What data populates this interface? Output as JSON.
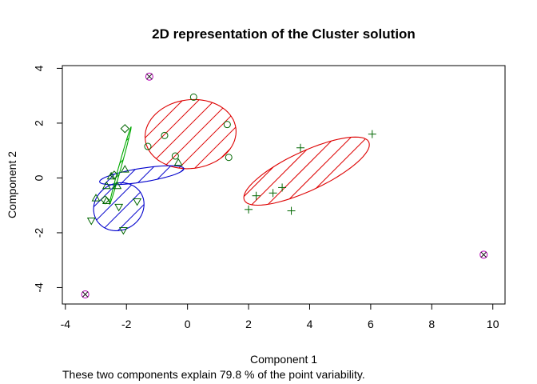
{
  "chart_data": {
    "type": "scatter",
    "title": "2D representation of the Cluster solution",
    "xlabel": "Component 1",
    "ylabel": "Component 2",
    "note": "These two components explain 79.8 % of the point variability.",
    "xlim": [
      -4.1,
      10.4
    ],
    "ylim": [
      -4.6,
      4.1
    ],
    "xticks": [
      -4,
      -2,
      0,
      2,
      4,
      6,
      8,
      10
    ],
    "yticks": [
      -4,
      -2,
      0,
      2,
      4
    ],
    "grid": false,
    "legend": "none",
    "ellipses": [
      {
        "cx": 0.1,
        "cy": 1.6,
        "rx": 1.5,
        "ry": 1.25,
        "angle": 12,
        "color": "#dd0000"
      },
      {
        "cx": 3.9,
        "cy": 0.25,
        "rx": 2.3,
        "ry": 0.7,
        "angle": 28,
        "color": "#dd0000"
      },
      {
        "cx": -2.25,
        "cy": -1.05,
        "rx": 0.9,
        "ry": 0.8,
        "angle": 60,
        "color": "#0000cc"
      },
      {
        "cx": -1.5,
        "cy": 0.1,
        "rx": 1.4,
        "ry": 0.25,
        "angle": 10,
        "color": "#0000cc"
      },
      {
        "cx": -2.2,
        "cy": 0.45,
        "rx": 1.45,
        "ry": 0.04,
        "angle": 76,
        "color": "#00aa00"
      }
    ],
    "series": [
      {
        "shape": "circle",
        "color": "#006600",
        "points": [
          [
            0.2,
            2.95
          ],
          [
            -0.75,
            1.55
          ],
          [
            1.3,
            1.95
          ],
          [
            -1.3,
            1.15
          ],
          [
            -0.4,
            0.8
          ],
          [
            1.35,
            0.75
          ]
        ]
      },
      {
        "shape": "plus",
        "color": "#006600",
        "points": [
          [
            6.05,
            1.6
          ],
          [
            3.7,
            1.1
          ],
          [
            3.1,
            -0.35
          ],
          [
            2.8,
            -0.55
          ],
          [
            2.25,
            -0.65
          ],
          [
            3.4,
            -1.2
          ],
          [
            2.0,
            -1.15
          ]
        ]
      },
      {
        "shape": "triangle",
        "color": "#006600",
        "points": [
          [
            -0.3,
            0.55
          ],
          [
            -2.05,
            0.3
          ],
          [
            -2.5,
            0.05
          ],
          [
            -2.3,
            -0.3
          ],
          [
            -2.65,
            -0.3
          ],
          [
            -3.0,
            -0.75
          ],
          [
            -2.65,
            -0.85
          ]
        ]
      },
      {
        "shape": "invtriangle",
        "color": "#006600",
        "points": [
          [
            -2.25,
            -1.05
          ],
          [
            -1.65,
            -0.85
          ],
          [
            -3.15,
            -1.55
          ],
          [
            -2.1,
            -1.9
          ]
        ]
      },
      {
        "shape": "diamond",
        "color": "#006600",
        "points": [
          [
            -2.05,
            1.8
          ],
          [
            -2.4,
            0.1
          ],
          [
            -2.7,
            -0.8
          ]
        ]
      },
      {
        "shape": "crosscircle",
        "color": "#bb00bb",
        "points": [
          [
            -1.25,
            3.7
          ]
        ]
      },
      {
        "shape": "crosscircle",
        "color": "#bb00bb",
        "points": [
          [
            9.7,
            -2.8
          ]
        ]
      },
      {
        "shape": "crosscircle",
        "color": "#bb00bb",
        "points": [
          [
            -3.35,
            -4.25
          ]
        ]
      }
    ]
  }
}
